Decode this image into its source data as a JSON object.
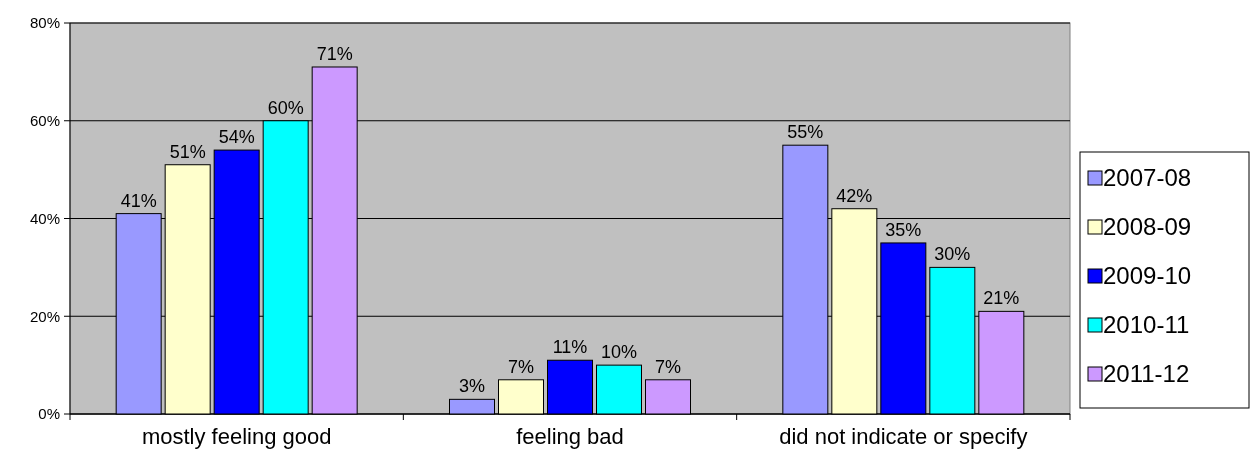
{
  "chart_data": {
    "type": "bar",
    "categories": [
      "mostly feeling good",
      "feeling bad",
      "did not indicate or specify"
    ],
    "series": [
      {
        "name": "2007-08",
        "color": "#9999ff",
        "values": [
          41,
          3,
          55
        ],
        "value_labels": [
          "41%",
          "3%",
          "55%"
        ]
      },
      {
        "name": "2008-09",
        "color": "#ffffcc",
        "values": [
          51,
          7,
          42
        ],
        "value_labels": [
          "51%",
          "7%",
          "42%"
        ]
      },
      {
        "name": "2009-10",
        "color": "#0000ff",
        "values": [
          54,
          11,
          35
        ],
        "value_labels": [
          "54%",
          "11%",
          "35%"
        ]
      },
      {
        "name": "2010-11",
        "color": "#00ffff",
        "values": [
          60,
          10,
          30
        ],
        "value_labels": [
          "60%",
          "10%",
          "30%"
        ]
      },
      {
        "name": "2011-12",
        "color": "#cc99ff",
        "values": [
          71,
          7,
          21
        ],
        "value_labels": [
          "71%",
          "7%",
          "21%"
        ]
      }
    ],
    "ylim": [
      0,
      80
    ],
    "yticks": [
      {
        "value": 0,
        "label": "0%"
      },
      {
        "value": 20,
        "label": "20%"
      },
      {
        "value": 40,
        "label": "40%"
      },
      {
        "value": 60,
        "label": "60%"
      },
      {
        "value": 80,
        "label": "80%"
      }
    ],
    "grid": "y",
    "legend": "right"
  }
}
